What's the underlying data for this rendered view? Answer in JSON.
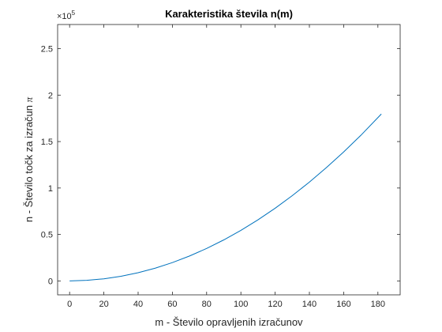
{
  "chart_data": {
    "type": "line",
    "title": "Karakteristika števila n(m)",
    "xlabel": "m - Število opravljenih izračunov",
    "ylabel_prefix": "n - Število točk za izračun ",
    "ylabel_symbol": "π",
    "exponent_label": "×10",
    "exponent_power": "5",
    "xlim": [
      -7,
      193
    ],
    "ylim": [
      -0.15,
      2.76
    ],
    "x_ticks": [
      0,
      20,
      40,
      60,
      80,
      100,
      120,
      140,
      160,
      180
    ],
    "x_tick_labels": [
      "0",
      "20",
      "40",
      "60",
      "80",
      "100",
      "120",
      "140",
      "160",
      "180"
    ],
    "y_ticks": [
      0,
      0.5,
      1,
      1.5,
      2,
      2.5
    ],
    "y_tick_labels": [
      "0",
      "0.5",
      "1",
      "1.5",
      "2",
      "2.5"
    ],
    "grid": false,
    "series": [
      {
        "color": "#0072BD",
        "x": [
          0,
          10,
          20,
          30,
          40,
          50,
          60,
          70,
          80,
          90,
          100,
          110,
          120,
          130,
          140,
          150,
          160,
          170,
          182
        ],
        "y": [
          0,
          0.0059,
          0.0227,
          0.0502,
          0.0885,
          0.1375,
          0.1973,
          0.2679,
          0.3493,
          0.4414,
          0.5443,
          0.658,
          0.7825,
          0.9177,
          1.0637,
          1.2205,
          1.388,
          1.5663,
          1.7966
        ]
      }
    ]
  }
}
